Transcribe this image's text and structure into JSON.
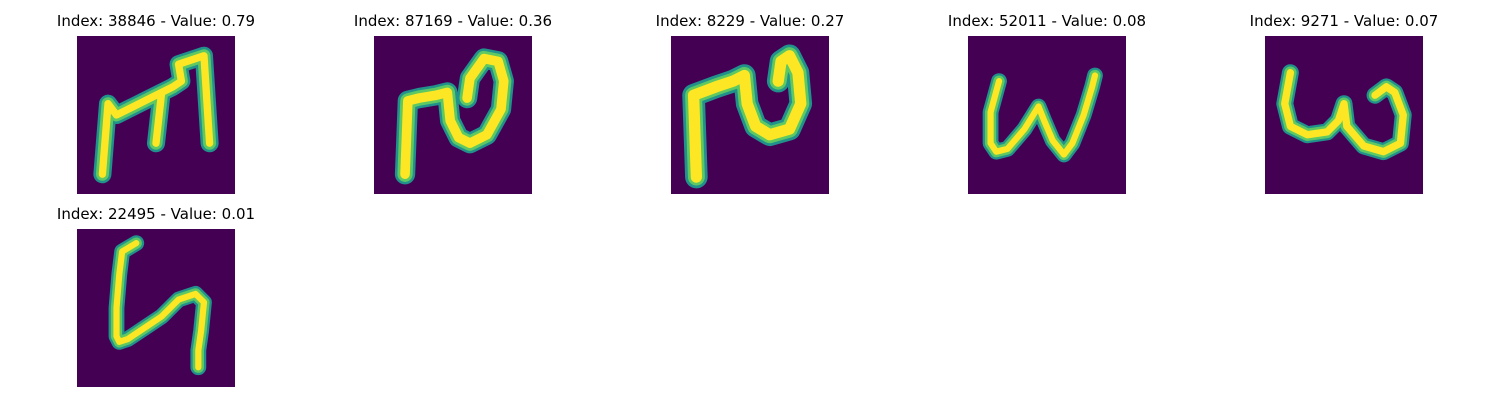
{
  "colors": {
    "background": "#440154",
    "glyph_halo": "#21918c",
    "glyph_edge": "#5ec962",
    "glyph_core": "#fde725",
    "text": "#000000"
  },
  "panels": [
    {
      "title": "Index: 38846 - Value: 0.79",
      "glyph": "letter-m"
    },
    {
      "title": "Index: 87169 - Value: 0.36",
      "glyph": "letter-n-curl"
    },
    {
      "title": "Index: 8229 - Value: 0.27",
      "glyph": "letter-n-curl"
    },
    {
      "title": "Index: 52011 - Value: 0.08",
      "glyph": "letter-w"
    },
    {
      "title": "Index: 9271 - Value: 0.07",
      "glyph": "letter-w"
    },
    {
      "title": "Index: 22495 - Value: 0.01",
      "glyph": "letter-h-slanted"
    }
  ]
}
